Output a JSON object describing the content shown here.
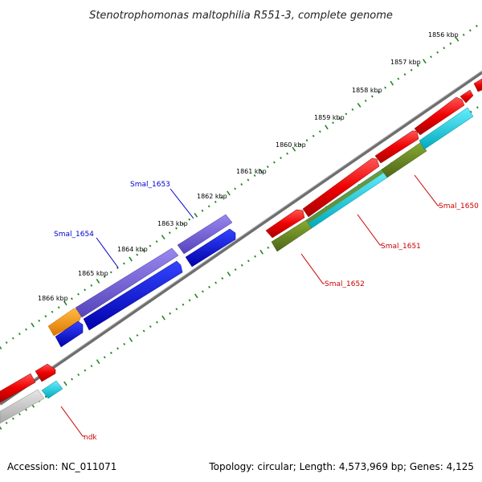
{
  "title": "Stenotrophomonas maltophilia R551-3, complete genome",
  "footer": {
    "accession": "Accession: NC_011071",
    "summary": "Topology: circular; Length: 4,573,969 bp; Genes: 4,125"
  },
  "ruler": {
    "ticks": [
      "1856 kbp",
      "1857 kbp",
      "1858 kbp",
      "1859 kbp",
      "1860 kbp",
      "1861 kbp",
      "1862 kbp",
      "1863 kbp",
      "1864 kbp",
      "1865 kbp",
      "1866 kbp"
    ]
  },
  "gene_labels": {
    "smal_1653": "Smal_1653",
    "smal_1654": "Smal_1654",
    "smal_1650": "Smal_1650",
    "smal_1651": "Smal_1651",
    "smal_1652": "Smal_1652",
    "ndk": "ndk"
  },
  "colors": {
    "backbone": "#808080",
    "forward_gene": "#ff0000",
    "cds_forward": "#00ccdd",
    "cds_olive": "#668822",
    "blue_gene": "#0000ee",
    "blue_cds": "#7766dd",
    "orange_gene": "#ff9900",
    "grey_cds": "#c8c8c8",
    "tick_green": "#228822"
  }
}
